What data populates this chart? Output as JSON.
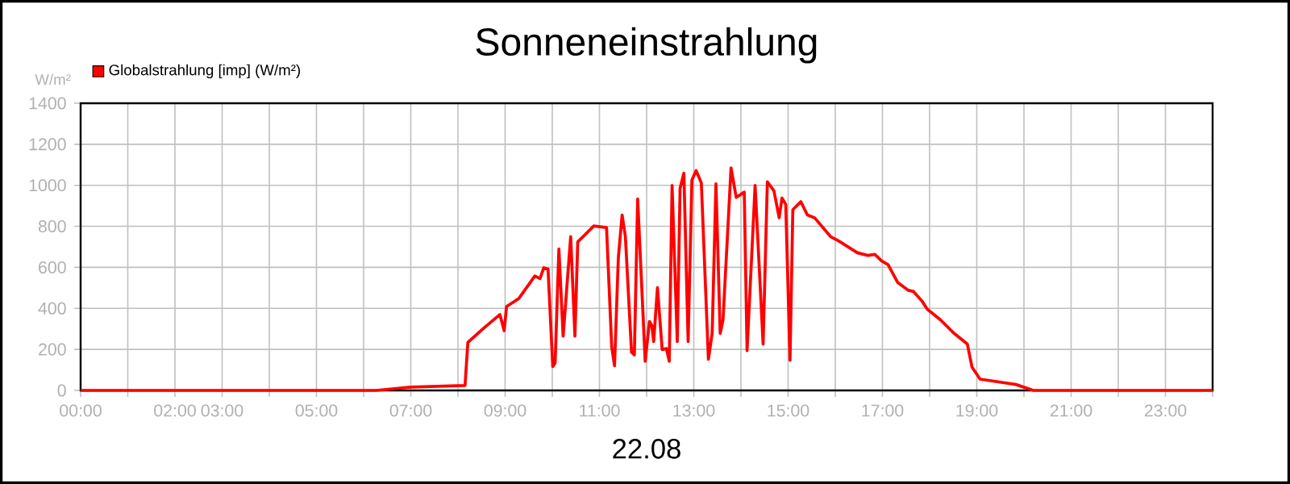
{
  "chart_data": {
    "type": "line",
    "title": "Sonneneinstrahlung",
    "xlabel": "22.08",
    "ylabel": "W/m²",
    "xlim": [
      0,
      24
    ],
    "ylim": [
      0,
      1400
    ],
    "xticks": [
      {
        "value": 0,
        "label": "00:00"
      },
      {
        "value": 1,
        "label": null
      },
      {
        "value": 2,
        "label": "02:00"
      },
      {
        "value": 3,
        "label": "03:00"
      },
      {
        "value": 4,
        "label": null
      },
      {
        "value": 5,
        "label": "05:00"
      },
      {
        "value": 6,
        "label": null
      },
      {
        "value": 7,
        "label": "07:00"
      },
      {
        "value": 8,
        "label": null
      },
      {
        "value": 9,
        "label": "09:00"
      },
      {
        "value": 10,
        "label": null
      },
      {
        "value": 11,
        "label": "11:00"
      },
      {
        "value": 12,
        "label": null
      },
      {
        "value": 13,
        "label": "13:00"
      },
      {
        "value": 14,
        "label": null
      },
      {
        "value": 15,
        "label": "15:00"
      },
      {
        "value": 16,
        "label": null
      },
      {
        "value": 17,
        "label": "17:00"
      },
      {
        "value": 18,
        "label": null
      },
      {
        "value": 19,
        "label": "19:00"
      },
      {
        "value": 20,
        "label": null
      },
      {
        "value": 21,
        "label": "21:00"
      },
      {
        "value": 22,
        "label": null
      },
      {
        "value": 23,
        "label": "23:00"
      },
      {
        "value": 24,
        "label": null
      }
    ],
    "yticks": [
      0,
      200,
      400,
      600,
      800,
      1000,
      1200,
      1400
    ],
    "grid": true,
    "legend": "top left",
    "marker": "none",
    "line_style": "solid",
    "series": [
      {
        "name": "Globalstrahlung [imp] (W/m²)",
        "color": "#ff0000",
        "x": [
          0,
          6.26,
          7.0,
          8.15,
          8.21,
          8.55,
          8.89,
          8.98,
          9.03,
          9.29,
          9.63,
          9.74,
          9.82,
          9.91,
          10.01,
          10.06,
          10.14,
          10.23,
          10.39,
          10.48,
          10.54,
          10.71,
          10.88,
          11.15,
          11.26,
          11.32,
          11.4,
          11.48,
          11.55,
          11.68,
          11.74,
          11.81,
          11.97,
          12.06,
          12.11,
          12.15,
          12.23,
          12.33,
          12.42,
          12.48,
          12.54,
          12.65,
          12.71,
          12.79,
          12.88,
          12.96,
          13.05,
          13.16,
          13.31,
          13.39,
          13.47,
          13.56,
          13.62,
          13.79,
          13.9,
          14.07,
          14.13,
          14.3,
          14.47,
          14.56,
          14.7,
          14.81,
          14.87,
          14.95,
          15.04,
          15.1,
          15.27,
          15.41,
          15.56,
          15.9,
          16.07,
          16.47,
          16.69,
          16.84,
          16.98,
          17.12,
          17.32,
          17.55,
          17.66,
          17.84,
          17.95,
          18.23,
          18.52,
          18.8,
          18.9,
          19.07,
          19.83,
          20.2,
          24
        ],
        "values": [
          0,
          0,
          16,
          24,
          234,
          304,
          370,
          291,
          409,
          448,
          558,
          545,
          598,
          592,
          116,
          134,
          690,
          265,
          750,
          265,
          724,
          763,
          802,
          794,
          212,
          120,
          645,
          855,
          750,
          186,
          173,
          934,
          142,
          336,
          317,
          238,
          501,
          199,
          204,
          142,
          999,
          238,
          986,
          1059,
          238,
          1025,
          1072,
          1012,
          152,
          278,
          1007,
          278,
          344,
          1085,
          941,
          967,
          194,
          999,
          226,
          1017,
          973,
          842,
          938,
          907,
          147,
          881,
          920,
          855,
          842,
          750,
          729,
          671,
          658,
          663,
          632,
          613,
          527,
          488,
          482,
          435,
          396,
          344,
          278,
          226,
          113,
          55,
          29,
          0,
          0
        ]
      }
    ]
  }
}
